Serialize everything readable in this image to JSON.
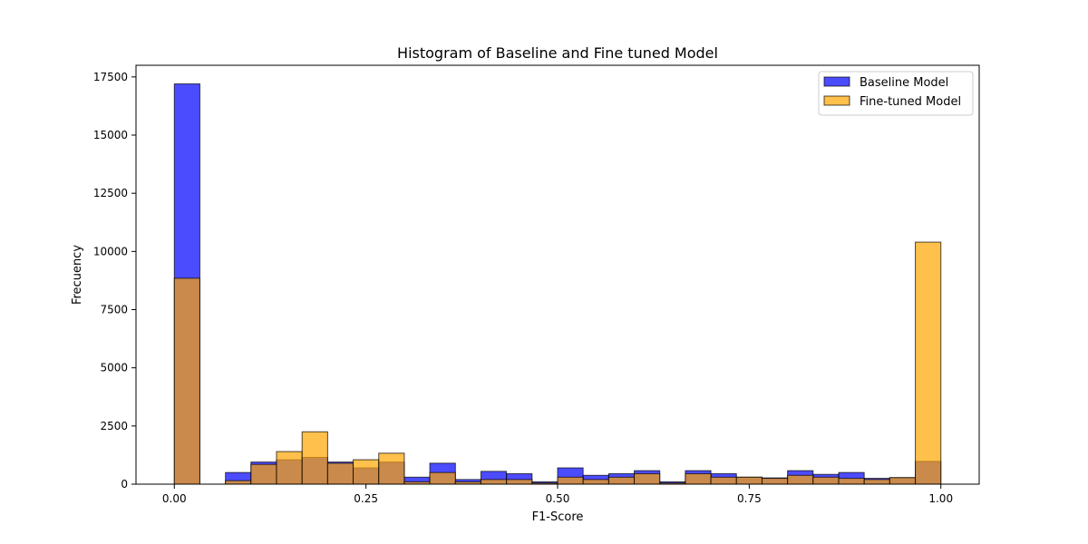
{
  "chart_data": {
    "type": "bar",
    "title": "Histogram of Baseline and Fine tuned Model",
    "xlabel": "F1-Score",
    "ylabel": "Frecuency",
    "xlim": [
      -0.05,
      1.05
    ],
    "ylim": [
      0,
      18000
    ],
    "x_ticks": [
      0.0,
      0.25,
      0.5,
      0.75,
      1.0
    ],
    "x_tick_labels": [
      "0.00",
      "0.25",
      "0.50",
      "0.75",
      "1.00"
    ],
    "y_ticks": [
      0,
      2500,
      5000,
      7500,
      10000,
      12500,
      15000,
      17500
    ],
    "y_tick_labels": [
      "0",
      "2500",
      "5000",
      "7500",
      "10000",
      "12500",
      "15000",
      "17500"
    ],
    "bin_edges": [
      0.0,
      0.0333,
      0.0667,
      0.1,
      0.1333,
      0.1667,
      0.2,
      0.2333,
      0.2667,
      0.3,
      0.3333,
      0.3667,
      0.4,
      0.4333,
      0.4667,
      0.5,
      0.5333,
      0.5667,
      0.6,
      0.6333,
      0.6667,
      0.7,
      0.7333,
      0.7667,
      0.8,
      0.8333,
      0.8667,
      0.9,
      0.9333,
      0.9667,
      1.0
    ],
    "legend_position": "top-right",
    "series": [
      {
        "name": "Baseline Model",
        "color": "#0000ff",
        "opacity": 0.7,
        "values": [
          17200,
          0,
          500,
          950,
          1050,
          1150,
          950,
          700,
          950,
          300,
          900,
          200,
          550,
          450,
          100,
          700,
          380,
          450,
          580,
          100,
          580,
          450,
          300,
          270,
          580,
          420,
          500,
          250,
          280,
          980
        ]
      },
      {
        "name": "Fine-tuned Model",
        "color": "#ffa500",
        "opacity": 0.7,
        "values": [
          8850,
          0,
          150,
          850,
          1400,
          2250,
          900,
          1050,
          1330,
          100,
          500,
          100,
          200,
          200,
          50,
          300,
          200,
          300,
          450,
          50,
          450,
          300,
          300,
          250,
          380,
          300,
          250,
          200,
          280,
          10400
        ]
      }
    ]
  }
}
